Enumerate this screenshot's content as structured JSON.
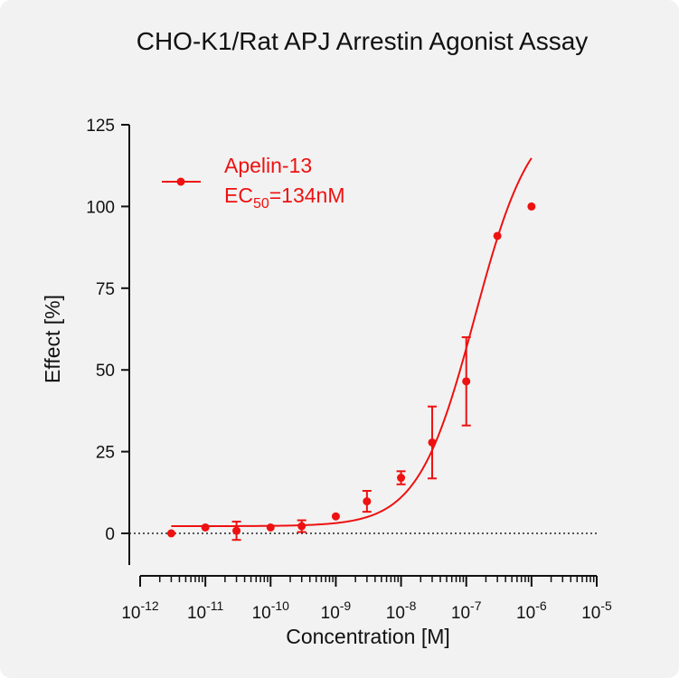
{
  "chart_data": {
    "type": "scatter",
    "title": "CHO-K1/Rat APJ Arrestin Agonist Assay",
    "xlabel": "Concentration [M]",
    "ylabel": "Effect  [%]",
    "x_scale": "log",
    "xlim": [
      1e-12,
      1e-05
    ],
    "ylim": [
      -10,
      125
    ],
    "yticks": [
      0,
      25,
      50,
      75,
      100,
      125
    ],
    "xticks": [
      {
        "base": "10",
        "exp": "-12"
      },
      {
        "base": "10",
        "exp": "-11"
      },
      {
        "base": "10",
        "exp": "-10"
      },
      {
        "base": "10",
        "exp": "-9"
      },
      {
        "base": "10",
        "exp": "-8"
      },
      {
        "base": "10",
        "exp": "-7"
      },
      {
        "base": "10",
        "exp": "-6"
      },
      {
        "base": "10",
        "exp": "-5"
      }
    ],
    "baseline": 0,
    "color": "#ee1111",
    "legend_position": "top-left",
    "series": [
      {
        "name": "Apelin-13",
        "ec50_label": {
          "prefix": "EC",
          "sub": "50",
          "suffix": "=134nM"
        },
        "points": [
          {
            "x": 3e-12,
            "y": 0,
            "err": 0
          },
          {
            "x": 1e-11,
            "y": 1.8,
            "err": 0
          },
          {
            "x": 3e-11,
            "y": 0.8,
            "err": 2.8
          },
          {
            "x": 1e-10,
            "y": 1.8,
            "err": 0
          },
          {
            "x": 3e-10,
            "y": 2.2,
            "err": 1.8
          },
          {
            "x": 1e-09,
            "y": 5.2,
            "err": 0
          },
          {
            "x": 3e-09,
            "y": 9.8,
            "err": 3.2
          },
          {
            "x": 1e-08,
            "y": 17,
            "err": 2
          },
          {
            "x": 3e-08,
            "y": 27.8,
            "err": 11
          },
          {
            "x": 1e-07,
            "y": 46.5,
            "err": 13.5
          },
          {
            "x": 3e-07,
            "y": 91,
            "err": 0
          },
          {
            "x": 1e-06,
            "y": 100,
            "err": 0
          }
        ],
        "fit": {
          "bottom": 2.2,
          "top": 130,
          "log_ec50": -6.87,
          "hill": 1.0,
          "x_range": [
            3e-12,
            1e-06
          ]
        }
      }
    ]
  }
}
